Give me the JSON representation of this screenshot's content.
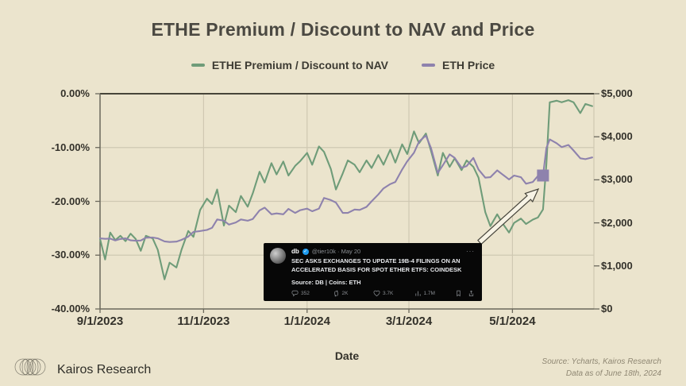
{
  "title": "ETHE Premium / Discount to NAV and Price",
  "legend": {
    "items": [
      {
        "label": "ETHE Premium / Discount to NAV",
        "color": "#6f9c79"
      },
      {
        "label": "ETH Price",
        "color": "#8e82ad"
      }
    ]
  },
  "chart_data": {
    "type": "line",
    "title": "ETHE Premium / Discount to NAV and Price",
    "xlabel": "Date",
    "x_max_days": 291,
    "x_ticks": [
      {
        "d": 0,
        "label": "9/1/2023"
      },
      {
        "d": 61,
        "label": "11/1/2023"
      },
      {
        "d": 122,
        "label": "1/1/2024"
      },
      {
        "d": 182,
        "label": "3/1/2024"
      },
      {
        "d": 243,
        "label": "5/1/2024"
      }
    ],
    "ylim_left_pct": [
      -40,
      0
    ],
    "ylim_right_usd": [
      0,
      5000
    ],
    "y_left_ticks": [
      {
        "v": 0,
        "label": "0.00%"
      },
      {
        "v": -10,
        "label": "-10.00%"
      },
      {
        "v": -20,
        "label": "-20.00%"
      },
      {
        "v": -30,
        "label": "-30.00%"
      },
      {
        "v": -40,
        "label": "-40.00%"
      }
    ],
    "y_right_ticks": [
      {
        "v": 5000,
        "label": "$5,000"
      },
      {
        "v": 4000,
        "label": "$4,000"
      },
      {
        "v": 3000,
        "label": "$3,000"
      },
      {
        "v": 2000,
        "label": "$2,000"
      },
      {
        "v": 1000,
        "label": "$1,000"
      },
      {
        "v": 0,
        "label": "$0"
      }
    ],
    "grid": true,
    "legend_position": "top",
    "series": [
      {
        "name": "ETHE Premium / Discount to NAV",
        "axis": "left",
        "unit": "%",
        "color": "#6f9c79",
        "points": [
          [
            0,
            -27
          ],
          [
            3,
            -30.8
          ],
          [
            6,
            -25.8
          ],
          [
            9,
            -27.2
          ],
          [
            12,
            -26.4
          ],
          [
            15,
            -27.4
          ],
          [
            18,
            -26
          ],
          [
            21,
            -27
          ],
          [
            24,
            -29.2
          ],
          [
            27,
            -26.4
          ],
          [
            31,
            -26.9
          ],
          [
            34,
            -29
          ],
          [
            38,
            -34.5
          ],
          [
            41,
            -31.4
          ],
          [
            45,
            -32.3
          ],
          [
            48,
            -29
          ],
          [
            52,
            -25.5
          ],
          [
            55,
            -26.6
          ],
          [
            59,
            -21.6
          ],
          [
            63,
            -19.5
          ],
          [
            66,
            -20.5
          ],
          [
            69,
            -17.8
          ],
          [
            73,
            -24.5
          ],
          [
            76,
            -20.8
          ],
          [
            80,
            -22
          ],
          [
            83,
            -19
          ],
          [
            87,
            -21
          ],
          [
            90,
            -18.5
          ],
          [
            94,
            -14.5
          ],
          [
            97,
            -16.5
          ],
          [
            101,
            -12.9
          ],
          [
            104,
            -15
          ],
          [
            108,
            -12.6
          ],
          [
            111,
            -15.2
          ],
          [
            115,
            -13.4
          ],
          [
            118,
            -12.5
          ],
          [
            122,
            -11
          ],
          [
            125,
            -13.2
          ],
          [
            129,
            -9.8
          ],
          [
            132,
            -10.8
          ],
          [
            136,
            -14
          ],
          [
            139,
            -17.8
          ],
          [
            143,
            -14.8
          ],
          [
            146,
            -12.4
          ],
          [
            150,
            -13.2
          ],
          [
            153,
            -14.6
          ],
          [
            157,
            -12.4
          ],
          [
            160,
            -13.8
          ],
          [
            164,
            -11.4
          ],
          [
            167,
            -13.2
          ],
          [
            171,
            -10.4
          ],
          [
            174,
            -12.8
          ],
          [
            178,
            -9.4
          ],
          [
            181,
            -11.2
          ],
          [
            185,
            -7
          ],
          [
            188,
            -9.2
          ],
          [
            192,
            -7.4
          ],
          [
            195,
            -10.6
          ],
          [
            199,
            -15.2
          ],
          [
            202,
            -11
          ],
          [
            206,
            -13.6
          ],
          [
            209,
            -12
          ],
          [
            213,
            -14.2
          ],
          [
            216,
            -12.4
          ],
          [
            220,
            -13.6
          ],
          [
            223,
            -15.6
          ],
          [
            227,
            -22
          ],
          [
            230,
            -24.6
          ],
          [
            234,
            -22.4
          ],
          [
            237,
            -24
          ],
          [
            241,
            -25.8
          ],
          [
            244,
            -24
          ],
          [
            248,
            -23.2
          ],
          [
            251,
            -24.2
          ],
          [
            255,
            -23.4
          ],
          [
            258,
            -23
          ],
          [
            261,
            -21.5
          ],
          [
            263,
            -13
          ],
          [
            265,
            -1.6
          ],
          [
            269,
            -1.3
          ],
          [
            272,
            -1.6
          ],
          [
            276,
            -1.2
          ],
          [
            279,
            -1.6
          ],
          [
            283,
            -3.6
          ],
          [
            286,
            -1.9
          ],
          [
            290,
            -2.3
          ]
        ]
      },
      {
        "name": "ETH Price",
        "axis": "right",
        "unit": "USD",
        "color": "#8e82ad",
        "points": [
          [
            0,
            1640
          ],
          [
            3,
            1630
          ],
          [
            6,
            1635
          ],
          [
            9,
            1590
          ],
          [
            12,
            1625
          ],
          [
            15,
            1640
          ],
          [
            18,
            1595
          ],
          [
            21,
            1585
          ],
          [
            24,
            1590
          ],
          [
            27,
            1655
          ],
          [
            31,
            1660
          ],
          [
            34,
            1640
          ],
          [
            38,
            1570
          ],
          [
            41,
            1555
          ],
          [
            45,
            1565
          ],
          [
            48,
            1605
          ],
          [
            52,
            1680
          ],
          [
            55,
            1790
          ],
          [
            59,
            1810
          ],
          [
            63,
            1835
          ],
          [
            66,
            1885
          ],
          [
            69,
            2080
          ],
          [
            73,
            2050
          ],
          [
            76,
            1960
          ],
          [
            80,
            2010
          ],
          [
            83,
            2080
          ],
          [
            87,
            2050
          ],
          [
            90,
            2090
          ],
          [
            94,
            2290
          ],
          [
            97,
            2355
          ],
          [
            101,
            2200
          ],
          [
            104,
            2220
          ],
          [
            108,
            2200
          ],
          [
            111,
            2325
          ],
          [
            115,
            2230
          ],
          [
            118,
            2295
          ],
          [
            122,
            2330
          ],
          [
            125,
            2270
          ],
          [
            129,
            2330
          ],
          [
            132,
            2580
          ],
          [
            136,
            2530
          ],
          [
            139,
            2470
          ],
          [
            143,
            2230
          ],
          [
            146,
            2230
          ],
          [
            150,
            2310
          ],
          [
            153,
            2300
          ],
          [
            157,
            2370
          ],
          [
            160,
            2500
          ],
          [
            164,
            2660
          ],
          [
            167,
            2800
          ],
          [
            171,
            2900
          ],
          [
            174,
            2950
          ],
          [
            178,
            3240
          ],
          [
            181,
            3430
          ],
          [
            185,
            3630
          ],
          [
            188,
            3890
          ],
          [
            192,
            4030
          ],
          [
            195,
            3740
          ],
          [
            199,
            3160
          ],
          [
            202,
            3340
          ],
          [
            206,
            3590
          ],
          [
            209,
            3510
          ],
          [
            213,
            3280
          ],
          [
            216,
            3320
          ],
          [
            220,
            3510
          ],
          [
            223,
            3240
          ],
          [
            227,
            3050
          ],
          [
            230,
            3060
          ],
          [
            234,
            3220
          ],
          [
            237,
            3130
          ],
          [
            241,
            3010
          ],
          [
            244,
            3100
          ],
          [
            248,
            3060
          ],
          [
            251,
            2910
          ],
          [
            255,
            2950
          ],
          [
            258,
            3090
          ],
          [
            261,
            3100
          ],
          [
            263,
            3740
          ],
          [
            265,
            3940
          ],
          [
            269,
            3850
          ],
          [
            272,
            3760
          ],
          [
            276,
            3810
          ],
          [
            279,
            3680
          ],
          [
            283,
            3500
          ],
          [
            286,
            3480
          ],
          [
            290,
            3520
          ]
        ]
      }
    ],
    "marker": {
      "series": "ETH Price",
      "d": 261,
      "value": 3100,
      "shape": "square",
      "color": "#8e82ad",
      "size": 15
    },
    "annotation_arrow": {
      "from": [
        478,
        187
      ],
      "to": [
        552,
        120
      ],
      "fill": "#f7f3e5",
      "stroke": "#45433a"
    },
    "colors": {
      "grid": "#cfc8b2",
      "axis_dark": "#474539",
      "axis_mid": "#6b685c",
      "background": "#ebe4cd"
    }
  },
  "tweet": {
    "author": "db",
    "handle_date": "@tier10k · May 20",
    "more": "···",
    "body_pre": "SEC ASKS EXCHANGES TO UPDATE 19B-4 FILINGS ON AN ACCELERATED BASIS FOR SPOT ETHER ",
    "body_bold": "ETFS",
    "body_post": ": COINDESK",
    "source_line": "Source: DB | Coins: ETH",
    "stats": {
      "replies": "352",
      "reposts": "2K",
      "likes": "3.7K",
      "views": "1.7M"
    }
  },
  "footer": {
    "brand": "Kairos Research",
    "source_line1": "Source: Ycharts, Kairos Research",
    "source_line2": "Data as of June 18th, 2024"
  }
}
